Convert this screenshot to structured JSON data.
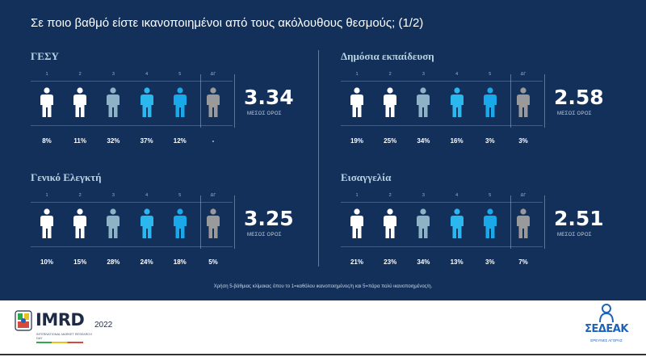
{
  "title": "Σε ποιο βαθμό είστε ικανοποιημένοι από τους ακόλουθους θεσμούς; (1/2)",
  "scale_labels": [
    "1",
    "2",
    "3",
    "4",
    "5",
    "ΔΓ"
  ],
  "mean_label": "ΜΕΣΟΣ ΟΡΟΣ",
  "colors": {
    "background": "#12305a",
    "scale_1": "#ffffff",
    "scale_2": "#ffffff",
    "scale_3": "#8fb3c6",
    "scale_4": "#2bb8ef",
    "scale_5": "#19a8ea",
    "dont_know": "#9a9a9a"
  },
  "panels": [
    {
      "title": "ΓΕΣΥ",
      "mean": "3.34",
      "percentages": [
        "8%",
        "11%",
        "32%",
        "37%",
        "12%",
        "-"
      ]
    },
    {
      "title": "Δημόσια εκπαίδευση",
      "mean": "2.58",
      "percentages": [
        "19%",
        "25%",
        "34%",
        "16%",
        "3%",
        "3%"
      ]
    },
    {
      "title": "Γενικό Ελεγκτή",
      "mean": "3.25",
      "percentages": [
        "10%",
        "15%",
        "28%",
        "24%",
        "18%",
        "5%"
      ]
    },
    {
      "title": "Εισαγγελία",
      "mean": "2.51",
      "percentages": [
        "21%",
        "23%",
        "34%",
        "13%",
        "3%",
        "7%"
      ]
    }
  ],
  "footnote": "Χρήση 5-βάθμιας κλίμακας όπου το 1=καθόλου ικανοποιημένος/η και 5=πάρα πολύ ικανοποιημένος/η.",
  "chart_data": [
    {
      "type": "table",
      "title": "ΓΕΣΥ",
      "categories": [
        "1",
        "2",
        "3",
        "4",
        "5",
        "ΔΓ"
      ],
      "values": [
        8,
        11,
        32,
        37,
        12,
        null
      ],
      "mean": 3.34
    },
    {
      "type": "table",
      "title": "Δημόσια εκπαίδευση",
      "categories": [
        "1",
        "2",
        "3",
        "4",
        "5",
        "ΔΓ"
      ],
      "values": [
        19,
        25,
        34,
        16,
        3,
        3
      ],
      "mean": 2.58
    },
    {
      "type": "table",
      "title": "Γενικό Ελεγκτή",
      "categories": [
        "1",
        "2",
        "3",
        "4",
        "5",
        "ΔΓ"
      ],
      "values": [
        10,
        15,
        28,
        24,
        18,
        5
      ],
      "mean": 3.25
    },
    {
      "type": "table",
      "title": "Εισαγγελία",
      "categories": [
        "1",
        "2",
        "3",
        "4",
        "5",
        "ΔΓ"
      ],
      "values": [
        21,
        23,
        34,
        13,
        3,
        7
      ],
      "mean": 2.51
    }
  ],
  "logos": {
    "imrd": {
      "name": "IMRD",
      "year": "2022",
      "subtitle": "INTERNATIONAL MARKET RESEARCH DAY"
    },
    "sedeak": {
      "name": "ΣΕΔΕΑΚ",
      "subtitle": "ΕΡΕΥΝΕΣ ΑΓΟΡΑΣ"
    }
  }
}
